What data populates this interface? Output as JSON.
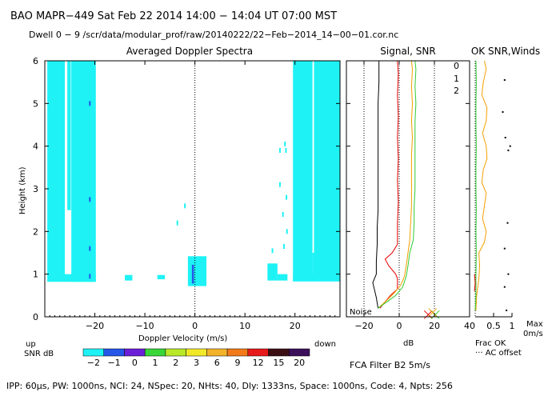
{
  "header": {
    "line1": "BAO  MAPR−449  Sat Feb 22 2014 14:00 − 14:04 UT 07:00 MST",
    "line2": "Dwell  0 −  9   /scr/data/modular_prof/raw/20140222/22−Feb−2014_14−00−01.cor.nc"
  },
  "footer": "IPP:  60μs,  PW: 1000ns,  NCI:  24,  NSpec: 20,  NHts: 40,  Dly: 1333ns,  Space: 1000ns,  Code: 4,  Npts: 256",
  "filter_label": "FCA Filter B2   5m/s",
  "colors": {
    "cyan": "#1ef2f5",
    "blue": "#2456e8",
    "dark_blue": "#1a1aa8",
    "black_trace": "#000000",
    "red_trace": "#e60000",
    "orange_trace": "#f2a000",
    "green_trace": "#33cc33",
    "snr_palette": [
      "#1ef2f5",
      "#2456e8",
      "#6a1fd6",
      "#39d639",
      "#b9e82a",
      "#f2e82a",
      "#f2b32a",
      "#f27a1a",
      "#e61a1a",
      "#3a0f14",
      "#3c0f5a"
    ]
  },
  "chart_data": [
    {
      "type": "heatmap",
      "title": "Averaged Doppler Spectra",
      "xlabel": "Doppler Velocity (m/s)",
      "ylabel": "Height (km)",
      "xlim": [
        -30,
        29
      ],
      "ylim": [
        0,
        6
      ],
      "xticks": [
        -20,
        -10,
        0,
        10,
        20
      ],
      "xtick_labels": [
        "−20",
        "−10",
        "0",
        "10",
        "20"
      ],
      "yticks": [
        0,
        1,
        2,
        3,
        4,
        5,
        6
      ],
      "up_label": "up",
      "down_label": "down",
      "snr_colorbar": {
        "label": "SNR dB",
        "ticks": [
          "−2",
          "−1",
          "0",
          "1",
          "2",
          "3",
          "6",
          "9",
          "12",
          "15",
          "20"
        ]
      },
      "cells": [
        {
          "v0": -29.5,
          "v1": -26.0,
          "h0": 0.82,
          "h1": 6.0,
          "color": "cyan"
        },
        {
          "v0": -25.5,
          "v1": -24.8,
          "h0": 2.5,
          "h1": 6.0,
          "color": "cyan"
        },
        {
          "v0": -24.7,
          "v1": -19.8,
          "h0": 0.82,
          "h1": 6.0,
          "color": "cyan"
        },
        {
          "v0": -26.0,
          "v1": -19.8,
          "h0": 0.82,
          "h1": 1.0,
          "color": "cyan"
        },
        {
          "v0": -14.0,
          "v1": -12.5,
          "h0": 0.85,
          "h1": 0.98,
          "color": "cyan"
        },
        {
          "v0": -7.5,
          "v1": -6.0,
          "h0": 0.88,
          "h1": 0.98,
          "color": "cyan"
        },
        {
          "v0": -1.4,
          "v1": 2.3,
          "h0": 0.72,
          "h1": 1.42,
          "color": "cyan"
        },
        {
          "v0": -0.6,
          "v1": -0.2,
          "h0": 0.78,
          "h1": 1.22,
          "color": "blue"
        },
        {
          "v0": 14.5,
          "v1": 16.5,
          "h0": 0.85,
          "h1": 1.25,
          "color": "cyan"
        },
        {
          "v0": 16.5,
          "v1": 18.5,
          "h0": 0.85,
          "h1": 1.0,
          "color": "cyan"
        },
        {
          "v0": 19.6,
          "v1": 23.5,
          "h0": 0.83,
          "h1": 6.0,
          "color": "cyan"
        },
        {
          "v0": 23.8,
          "v1": 29.0,
          "h0": 0.83,
          "h1": 6.0,
          "color": "cyan"
        },
        {
          "v0": 23.5,
          "v1": 23.8,
          "h0": 0.83,
          "h1": 1.5,
          "color": "cyan"
        },
        {
          "v0": 19.6,
          "v1": 29.0,
          "h0": 0.83,
          "h1": 1.0,
          "color": "cyan"
        }
      ],
      "specks": [
        {
          "v": -21.0,
          "h": 5.0,
          "color": "blue"
        },
        {
          "v": -21.0,
          "h": 2.75,
          "color": "blue"
        },
        {
          "v": -21.0,
          "h": 1.6,
          "color": "blue"
        },
        {
          "v": -21.0,
          "h": 0.95,
          "color": "blue"
        },
        {
          "v": -2.0,
          "h": 2.6,
          "color": "cyan"
        },
        {
          "v": -3.5,
          "h": 2.2,
          "color": "cyan"
        },
        {
          "v": 17.0,
          "h": 3.9,
          "color": "cyan"
        },
        {
          "v": 18.2,
          "h": 3.9,
          "color": "cyan"
        },
        {
          "v": 17.0,
          "h": 3.1,
          "color": "cyan"
        },
        {
          "v": 18.3,
          "h": 2.8,
          "color": "cyan"
        },
        {
          "v": 17.6,
          "h": 2.4,
          "color": "cyan"
        },
        {
          "v": 18.4,
          "h": 2.0,
          "color": "cyan"
        },
        {
          "v": 17.8,
          "h": 1.65,
          "color": "cyan"
        },
        {
          "v": 15.5,
          "h": 1.55,
          "color": "cyan"
        },
        {
          "v": 18.0,
          "h": 4.05,
          "color": "cyan"
        }
      ]
    },
    {
      "type": "line",
      "title": "Signal, SNR",
      "xlabel": "dB",
      "xlim": [
        -30,
        40
      ],
      "ylim": [
        0,
        6
      ],
      "xticks": [
        -20,
        0,
        20,
        40
      ],
      "xtick_labels": [
        "−20",
        "0",
        "20",
        "40"
      ],
      "dotted_x": [
        -20,
        0,
        20
      ],
      "noise_label": "Noise",
      "legend": [
        "0",
        "1",
        "2"
      ],
      "series": [
        {
          "name": "noise/signal",
          "color": "black_trace",
          "points": [
            [
              -12,
              0.2
            ],
            [
              -13,
              0.45
            ],
            [
              -15,
              0.8
            ],
            [
              -13,
              1.0
            ],
            [
              -13,
              1.3
            ],
            [
              -12.5,
              1.7
            ],
            [
              -12.5,
              2.1
            ],
            [
              -12,
              2.5
            ],
            [
              -12,
              3.0
            ],
            [
              -12,
              3.5
            ],
            [
              -12,
              4.0
            ],
            [
              -12,
              4.5
            ],
            [
              -12,
              5.0
            ],
            [
              -11.5,
              5.5
            ],
            [
              -11.5,
              6.0
            ]
          ]
        },
        {
          "name": "0",
          "color": "red_trace",
          "points": [
            [
              -11,
              0.2
            ],
            [
              -9,
              0.3
            ],
            [
              -5,
              0.5
            ],
            [
              -1,
              0.65
            ],
            [
              -1,
              0.9
            ],
            [
              -2,
              1.0
            ],
            [
              -6,
              1.2
            ],
            [
              -8,
              1.35
            ],
            [
              -4,
              1.5
            ],
            [
              -1,
              1.7
            ],
            [
              -1,
              2.2
            ],
            [
              -0.5,
              2.7
            ],
            [
              -1,
              3.2
            ],
            [
              -0.5,
              3.7
            ],
            [
              -1,
              4.2
            ],
            [
              -0.5,
              4.7
            ],
            [
              -1,
              5.2
            ],
            [
              -0.5,
              5.7
            ],
            [
              -1,
              6.0
            ]
          ]
        },
        {
          "name": "1",
          "color": "orange_trace",
          "points": [
            [
              -12,
              0.2
            ],
            [
              -8,
              0.35
            ],
            [
              -3,
              0.55
            ],
            [
              1,
              0.75
            ],
            [
              3,
              0.95
            ],
            [
              4,
              1.2
            ],
            [
              5,
              1.5
            ],
            [
              6,
              1.8
            ],
            [
              6.5,
              2.2
            ],
            [
              7,
              2.6
            ],
            [
              7,
              3.0
            ],
            [
              7,
              3.4
            ],
            [
              7,
              3.8
            ],
            [
              7.5,
              4.2
            ],
            [
              7,
              4.6
            ],
            [
              7.5,
              5.0
            ],
            [
              7,
              5.4
            ],
            [
              7.5,
              5.8
            ],
            [
              7,
              6.0
            ]
          ]
        },
        {
          "name": "2",
          "color": "green_trace",
          "points": [
            [
              -12,
              0.2
            ],
            [
              -7,
              0.35
            ],
            [
              -2,
              0.5
            ],
            [
              2,
              0.7
            ],
            [
              4,
              0.95
            ],
            [
              5,
              1.2
            ],
            [
              6,
              1.5
            ],
            [
              8,
              1.8
            ],
            [
              8.5,
              2.2
            ],
            [
              8.5,
              2.6
            ],
            [
              9,
              3.0
            ],
            [
              9,
              3.4
            ],
            [
              9,
              3.8
            ],
            [
              9,
              4.2
            ],
            [
              9,
              4.6
            ],
            [
              9.5,
              5.0
            ],
            [
              9,
              5.4
            ],
            [
              9.5,
              5.8
            ],
            [
              9,
              6.0
            ]
          ]
        }
      ],
      "markers": [
        {
          "x": 16.5,
          "y": 0.05,
          "color": "red_trace"
        },
        {
          "x": 20.5,
          "y": 0.05,
          "color": "green_trace"
        },
        {
          "x": 19.0,
          "y": 0.1,
          "color": "orange_trace"
        }
      ]
    },
    {
      "type": "line",
      "title": "OK SNR,Winds",
      "xlabel_lines": [
        "Frac OK",
        "··· AC offset"
      ],
      "xlim": [
        0,
        1
      ],
      "ylim": [
        0,
        6
      ],
      "xticks": [
        0.5,
        1
      ],
      "xtick_labels": [
        "0.5",
        "1"
      ],
      "right_labels": [
        "Max",
        "0m/s"
      ],
      "series": [
        {
          "name": "frac-ok",
          "color": "orange_trace",
          "points": [
            [
              0.02,
              0.15
            ],
            [
              0.04,
              0.5
            ],
            [
              0.1,
              0.9
            ],
            [
              0.12,
              1.2
            ],
            [
              0.1,
              1.5
            ],
            [
              0.25,
              1.75
            ],
            [
              0.3,
              2.0
            ],
            [
              0.2,
              2.3
            ],
            [
              0.25,
              2.6
            ],
            [
              0.3,
              2.9
            ],
            [
              0.18,
              3.15
            ],
            [
              0.22,
              3.45
            ],
            [
              0.32,
              3.7
            ],
            [
              0.3,
              4.0
            ],
            [
              0.2,
              4.3
            ],
            [
              0.3,
              4.6
            ],
            [
              0.32,
              4.9
            ],
            [
              0.18,
              5.2
            ],
            [
              0.22,
              5.5
            ],
            [
              0.3,
              5.8
            ],
            [
              0.25,
              6.0
            ]
          ]
        },
        {
          "name": "winds",
          "color": "green_trace",
          "points": [
            [
              0.0,
              0.15
            ],
            [
              0.02,
              0.5
            ],
            [
              0.02,
              1.0
            ],
            [
              0.03,
              1.5
            ],
            [
              0.02,
              2.0
            ],
            [
              0.03,
              2.5
            ],
            [
              0.02,
              3.0
            ],
            [
              0.02,
              3.5
            ],
            [
              0.03,
              4.0
            ],
            [
              0.02,
              4.5
            ],
            [
              0.02,
              5.0
            ],
            [
              0.03,
              5.5
            ],
            [
              0.02,
              6.0
            ]
          ]
        },
        {
          "name": "low-red",
          "color": "red_trace",
          "points": [
            [
              -0.02,
              0.6
            ],
            [
              0.0,
              0.8
            ],
            [
              -0.02,
              1.0
            ]
          ]
        }
      ],
      "dots": [
        {
          "x": 0.8,
          "y": 0.7
        },
        {
          "x": 0.9,
          "y": 1.0
        },
        {
          "x": 0.8,
          "y": 1.6
        },
        {
          "x": 0.88,
          "y": 2.2
        },
        {
          "x": 0.9,
          "y": 3.9
        },
        {
          "x": 0.95,
          "y": 4.0
        },
        {
          "x": 0.82,
          "y": 4.2
        },
        {
          "x": 0.8,
          "y": 5.55
        },
        {
          "x": 0.75,
          "y": 4.8
        },
        {
          "x": 0.85,
          "y": 0.15
        }
      ],
      "vertical_dotted_x": 0.0
    }
  ]
}
